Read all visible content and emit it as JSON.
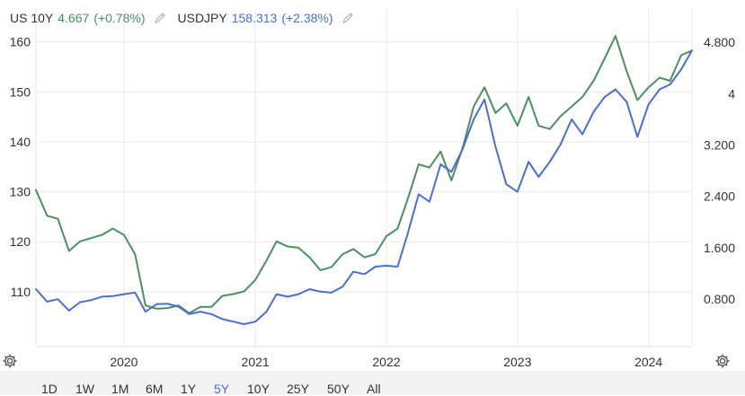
{
  "legend": {
    "series1": {
      "label": "US 10Y",
      "value": "4.667",
      "change": "(+0.78%)",
      "color": "#4a9060"
    },
    "series2": {
      "label": "USDJPY",
      "value": "158.313",
      "change": "(+2.38%)",
      "color": "#4a6fd4"
    },
    "edit_icon": "pencil-icon"
  },
  "settings_icon": "gear-icon",
  "range_buttons": {
    "b1d": "1D",
    "b1w": "1W",
    "b1m": "1M",
    "b6m": "6M",
    "b1y": "1Y",
    "b5y": "5Y",
    "b10y": "10Y",
    "b25y": "25Y",
    "b50y": "50Y",
    "ball": "All",
    "active": "5Y"
  },
  "chart_data": {
    "type": "line",
    "x_range": [
      "2019-05",
      "2024-05"
    ],
    "x_ticks": [
      "2020",
      "2021",
      "2022",
      "2023",
      "2024"
    ],
    "left_axis": {
      "ticks": [
        "110",
        "120",
        "130",
        "140",
        "150",
        "160"
      ],
      "ylim": [
        99,
        163
      ]
    },
    "right_axis": {
      "ticks": [
        "0.800",
        "1.600",
        "2.400",
        "3.200",
        "4",
        "4.800"
      ],
      "ylim": [
        0.06,
        5.04
      ]
    },
    "grid": true,
    "series": [
      {
        "name": "US 10Y",
        "color": "#4a9060",
        "axis": "right",
        "points": [
          [
            "2019-05-01",
            2.5
          ],
          [
            "2019-06-01",
            2.1
          ],
          [
            "2019-07-01",
            2.05
          ],
          [
            "2019-08-01",
            1.55
          ],
          [
            "2019-09-01",
            1.7
          ],
          [
            "2019-10-01",
            1.75
          ],
          [
            "2019-11-01",
            1.8
          ],
          [
            "2019-12-01",
            1.9
          ],
          [
            "2020-01-01",
            1.8
          ],
          [
            "2020-02-01",
            1.5
          ],
          [
            "2020-03-01",
            0.7
          ],
          [
            "2020-04-01",
            0.65
          ],
          [
            "2020-05-01",
            0.66
          ],
          [
            "2020-06-01",
            0.7
          ],
          [
            "2020-07-01",
            0.58
          ],
          [
            "2020-08-01",
            0.68
          ],
          [
            "2020-09-01",
            0.68
          ],
          [
            "2020-10-01",
            0.85
          ],
          [
            "2020-11-01",
            0.88
          ],
          [
            "2020-12-01",
            0.92
          ],
          [
            "2021-01-01",
            1.1
          ],
          [
            "2021-02-01",
            1.4
          ],
          [
            "2021-03-01",
            1.7
          ],
          [
            "2021-04-01",
            1.62
          ],
          [
            "2021-05-01",
            1.6
          ],
          [
            "2021-06-01",
            1.45
          ],
          [
            "2021-07-01",
            1.25
          ],
          [
            "2021-08-01",
            1.3
          ],
          [
            "2021-09-01",
            1.5
          ],
          [
            "2021-10-01",
            1.58
          ],
          [
            "2021-11-01",
            1.45
          ],
          [
            "2021-12-01",
            1.5
          ],
          [
            "2022-01-01",
            1.78
          ],
          [
            "2022-02-01",
            1.9
          ],
          [
            "2022-03-01",
            2.35
          ],
          [
            "2022-04-01",
            2.9
          ],
          [
            "2022-05-01",
            2.85
          ],
          [
            "2022-06-01",
            3.1
          ],
          [
            "2022-07-01",
            2.65
          ],
          [
            "2022-08-01",
            3.15
          ],
          [
            "2022-09-01",
            3.8
          ],
          [
            "2022-10-01",
            4.1
          ],
          [
            "2022-11-01",
            3.7
          ],
          [
            "2022-12-01",
            3.85
          ],
          [
            "2023-01-01",
            3.5
          ],
          [
            "2023-02-01",
            3.95
          ],
          [
            "2023-03-01",
            3.5
          ],
          [
            "2023-04-01",
            3.45
          ],
          [
            "2023-05-01",
            3.65
          ],
          [
            "2023-06-01",
            3.8
          ],
          [
            "2023-07-01",
            3.95
          ],
          [
            "2023-08-01",
            4.2
          ],
          [
            "2023-09-01",
            4.55
          ],
          [
            "2023-10-01",
            4.9
          ],
          [
            "2023-11-01",
            4.35
          ],
          [
            "2023-12-01",
            3.9
          ],
          [
            "2024-01-01",
            4.1
          ],
          [
            "2024-02-01",
            4.25
          ],
          [
            "2024-03-01",
            4.2
          ],
          [
            "2024-04-01",
            4.6
          ],
          [
            "2024-05-01",
            4.67
          ]
        ]
      },
      {
        "name": "USDJPY",
        "color": "#4a6fd4",
        "axis": "left",
        "points": [
          [
            "2019-05-01",
            110.5
          ],
          [
            "2019-06-01",
            108.0
          ],
          [
            "2019-07-01",
            108.5
          ],
          [
            "2019-08-01",
            106.2
          ],
          [
            "2019-09-01",
            107.9
          ],
          [
            "2019-10-01",
            108.3
          ],
          [
            "2019-11-01",
            109.0
          ],
          [
            "2019-12-01",
            109.1
          ],
          [
            "2020-01-01",
            109.5
          ],
          [
            "2020-02-01",
            109.8
          ],
          [
            "2020-03-01",
            106.0
          ],
          [
            "2020-04-01",
            107.5
          ],
          [
            "2020-05-01",
            107.6
          ],
          [
            "2020-06-01",
            107.0
          ],
          [
            "2020-07-01",
            105.5
          ],
          [
            "2020-08-01",
            106.0
          ],
          [
            "2020-09-01",
            105.5
          ],
          [
            "2020-10-01",
            104.5
          ],
          [
            "2020-11-01",
            104.0
          ],
          [
            "2020-12-01",
            103.5
          ],
          [
            "2021-01-01",
            104.0
          ],
          [
            "2021-02-01",
            106.0
          ],
          [
            "2021-03-01",
            109.5
          ],
          [
            "2021-04-01",
            109.0
          ],
          [
            "2021-05-01",
            109.5
          ],
          [
            "2021-06-01",
            110.5
          ],
          [
            "2021-07-01",
            110.0
          ],
          [
            "2021-08-01",
            109.8
          ],
          [
            "2021-09-01",
            111.0
          ],
          [
            "2021-10-01",
            114.0
          ],
          [
            "2021-11-01",
            113.5
          ],
          [
            "2021-12-01",
            115.0
          ],
          [
            "2022-01-01",
            115.2
          ],
          [
            "2022-02-01",
            115.0
          ],
          [
            "2022-03-01",
            121.5
          ],
          [
            "2022-04-01",
            129.5
          ],
          [
            "2022-05-01",
            128.0
          ],
          [
            "2022-06-01",
            135.5
          ],
          [
            "2022-07-01",
            134.0
          ],
          [
            "2022-08-01",
            138.5
          ],
          [
            "2022-09-01",
            144.5
          ],
          [
            "2022-10-01",
            148.5
          ],
          [
            "2022-11-01",
            139.0
          ],
          [
            "2022-12-01",
            131.5
          ],
          [
            "2023-01-01",
            130.0
          ],
          [
            "2023-02-01",
            136.0
          ],
          [
            "2023-03-01",
            133.0
          ],
          [
            "2023-04-01",
            136.0
          ],
          [
            "2023-05-01",
            139.5
          ],
          [
            "2023-06-01",
            144.5
          ],
          [
            "2023-07-01",
            141.5
          ],
          [
            "2023-08-01",
            146.0
          ],
          [
            "2023-09-01",
            149.0
          ],
          [
            "2023-10-01",
            150.5
          ],
          [
            "2023-11-01",
            148.0
          ],
          [
            "2023-12-01",
            141.0
          ],
          [
            "2024-01-01",
            147.5
          ],
          [
            "2024-02-01",
            150.5
          ],
          [
            "2024-03-01",
            151.5
          ],
          [
            "2024-04-01",
            154.5
          ],
          [
            "2024-05-01",
            158.3
          ]
        ]
      }
    ]
  }
}
